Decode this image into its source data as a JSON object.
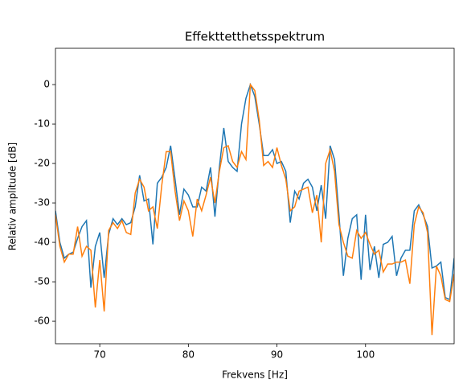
{
  "chart_data": {
    "type": "line",
    "title": "Effekttetthetsspektrum",
    "xlabel": "Frekvens [Hz]",
    "ylabel": "Relativ amplitude [dB]",
    "x": [
      65,
      65.5,
      66,
      66.5,
      67,
      67.5,
      68,
      68.5,
      69,
      69.5,
      70,
      70.5,
      71,
      71.5,
      72,
      72.5,
      73,
      73.5,
      74,
      74.5,
      75,
      75.5,
      76,
      76.5,
      77,
      77.5,
      78,
      78.5,
      79,
      79.5,
      80,
      80.5,
      81,
      81.5,
      82,
      82.5,
      83,
      83.5,
      84,
      84.5,
      85,
      85.5,
      86,
      86.5,
      87,
      87.5,
      88,
      88.5,
      89,
      89.5,
      90,
      90.5,
      91,
      91.5,
      92,
      92.5,
      93,
      93.5,
      94,
      94.5,
      95,
      95.5,
      96,
      96.5,
      97,
      97.5,
      98,
      98.5,
      99,
      99.5,
      100,
      100.5,
      101,
      101.5,
      102,
      102.5,
      103,
      103.5,
      104,
      104.5,
      105,
      105.5,
      106,
      106.5,
      107,
      107.5,
      108,
      108.5,
      109,
      109.5,
      110
    ],
    "series": [
      {
        "color": "#1f77b4",
        "values": [
          -32,
          -40,
          -44,
          -43,
          -42.5,
          -39,
          -36,
          -34.5,
          -51.5,
          -41,
          -37.5,
          -49,
          -38,
          -34,
          -35.5,
          -34,
          -35.5,
          -35,
          -31,
          -23,
          -29.5,
          -29,
          -40.5,
          -25,
          -23.5,
          -21,
          -15.5,
          -24,
          -33,
          -26.5,
          -28,
          -31,
          -31,
          -26,
          -27,
          -21,
          -33.5,
          -21,
          -11,
          -19.5,
          -21,
          -22,
          -10,
          -3.5,
          0,
          -3,
          -10,
          -18,
          -18,
          -16.5,
          -20,
          -19.5,
          -22,
          -35,
          -27,
          -29,
          -25,
          -24,
          -26,
          -32,
          -25.5,
          -34,
          -15.5,
          -19,
          -33,
          -48.5,
          -39,
          -34,
          -33,
          -49.5,
          -33,
          -47,
          -41,
          -49,
          -40.5,
          -40,
          -38.5,
          -48.5,
          -44,
          -42,
          -42,
          -32,
          -30.5,
          -33,
          -36,
          -46.5,
          -46,
          -45,
          -54,
          -54.5,
          -44
        ]
      },
      {
        "color": "#ff7f0e",
        "values": [
          -33,
          -41,
          -45,
          -43,
          -43,
          -36,
          -43.5,
          -41,
          -42,
          -56.5,
          -44.5,
          -57.5,
          -37,
          -35,
          -36.5,
          -34.5,
          -37.5,
          -38,
          -27.5,
          -24,
          -26,
          -32,
          -31,
          -36.5,
          -25.5,
          -17,
          -17,
          -27,
          -34.5,
          -29.5,
          -32,
          -38.5,
          -29,
          -32,
          -28,
          -23.5,
          -30,
          -22,
          -16,
          -15.5,
          -19.5,
          -21,
          -17,
          -19,
          0,
          -1.5,
          -9,
          -20.5,
          -19.5,
          -21,
          -16,
          -20.5,
          -24,
          -32,
          -31,
          -27,
          -26.5,
          -26,
          -32.5,
          -28,
          -40,
          -20,
          -16.5,
          -22,
          -35.5,
          -40,
          -43.5,
          -44,
          -37,
          -39,
          -37.5,
          -40.5,
          -43,
          -42,
          -47.5,
          -45.5,
          -45.5,
          -45,
          -45,
          -44.5,
          -50.5,
          -35.5,
          -31,
          -32.5,
          -37.5,
          -63.5,
          -46,
          -48.5,
          -54.5,
          -55,
          -48
        ]
      }
    ],
    "xlim": [
      65,
      110
    ],
    "ylim": [
      -65.7,
      9.2
    ],
    "xticks": [
      70,
      80,
      90,
      100
    ],
    "yticks": [
      -60,
      -50,
      -40,
      -30,
      -20,
      -10,
      0
    ],
    "grid": false
  }
}
